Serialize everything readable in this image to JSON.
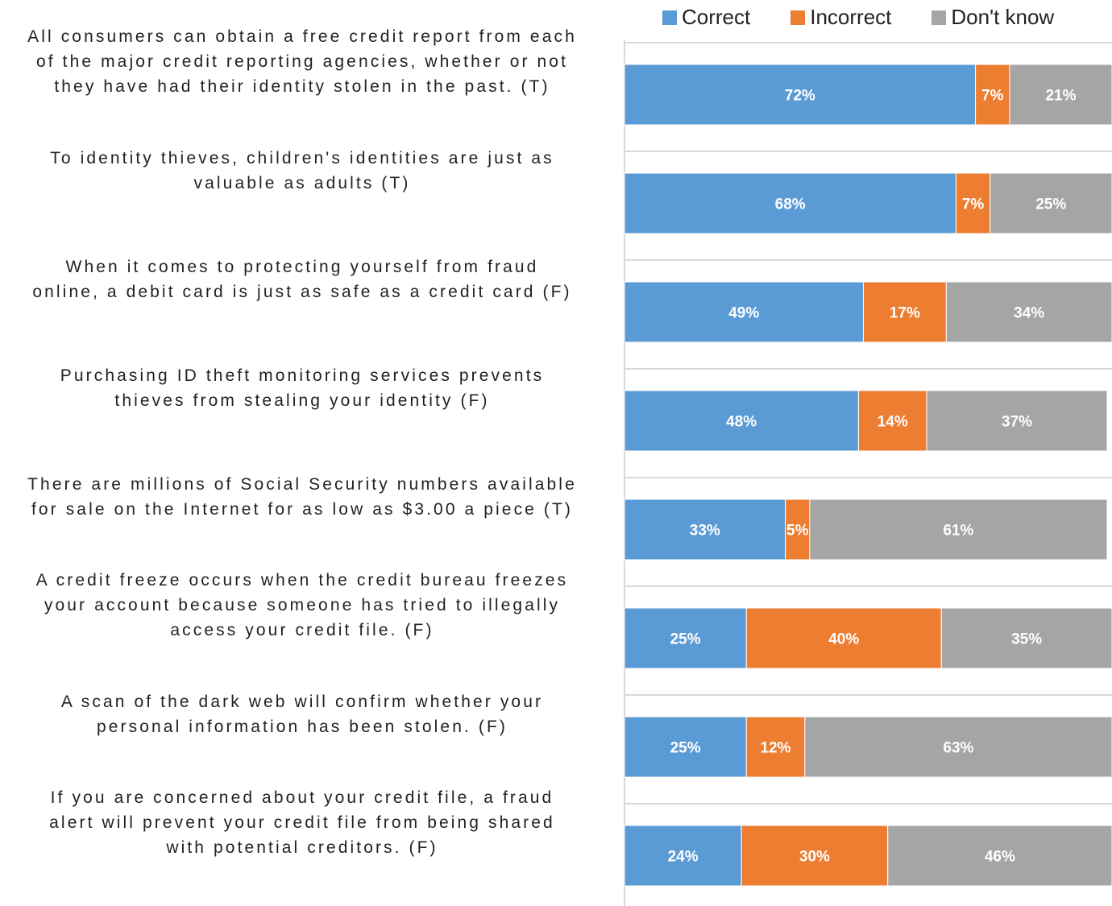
{
  "chart_data": {
    "type": "bar",
    "orientation": "horizontal",
    "stacked": true,
    "percent_stacked": true,
    "title": "",
    "xlabel": "",
    "ylabel": "",
    "legend_position": "top-right",
    "grid": true,
    "categories": [
      "All consumers can obtain a free credit report from each of the major credit reporting agencies, whether or not they have had their identity stolen in the past. (T)",
      "To identity thieves, children's identities are just as valuable as adults (T)",
      "When it comes to protecting yourself from fraud online, a debit card is just as safe as a credit card (F)",
      "Purchasing ID theft monitoring services prevents thieves from stealing your identity (F)",
      "There are millions of Social Security numbers available for sale on the Internet for as low as $3.00 a piece (T)",
      "A credit freeze occurs when the credit bureau freezes your account because someone has tried to illegally access your credit file. (F)",
      "A scan of the dark web will confirm whether your personal information has been stolen. (F)",
      "If you are concerned about your credit file, a fraud alert will prevent your credit file from being shared with potential creditors. (F)"
    ],
    "category_lines": [
      [
        "All consumers can obtain a free credit report from each",
        "of the major credit reporting agencies, whether or not",
        "they have had their identity stolen in the past. (T)"
      ],
      [
        "To identity thieves, children's identities are just as",
        "valuable as adults (T)"
      ],
      [
        "When it comes to protecting yourself from fraud",
        "online, a debit card is just as safe as a credit card (F)"
      ],
      [
        "Purchasing ID theft monitoring services prevents",
        "thieves from stealing your identity (F)"
      ],
      [
        "There are millions of Social Security numbers available",
        "for sale on the Internet for as low as $3.00 a piece (T)"
      ],
      [
        "A credit freeze occurs when the credit bureau freezes",
        "your account because someone has tried to illegally",
        "access your credit file. (F)"
      ],
      [
        "A scan of the dark web will confirm whether your",
        "personal information has been stolen. (F)"
      ],
      [
        "If you are concerned about your credit file, a fraud",
        "alert will prevent your credit file from being shared",
        "with potential creditors. (F)"
      ]
    ],
    "series": [
      {
        "name": "Correct",
        "color": "#5b9bd5",
        "values": [
          72,
          68,
          49,
          48,
          33,
          25,
          25,
          24
        ],
        "labels": [
          "72%",
          "68%",
          "49%",
          "48%",
          "33%",
          "25%",
          "25%",
          "24%"
        ]
      },
      {
        "name": "Incorrect",
        "color": "#ed7d31",
        "values": [
          7,
          7,
          17,
          14,
          5,
          40,
          12,
          30
        ],
        "labels": [
          "7%",
          "7%",
          "17%",
          "14%",
          "5%",
          "40%",
          "12%",
          "30%"
        ]
      },
      {
        "name": "Don't know",
        "color": "#a5a5a5",
        "values": [
          21,
          25,
          34,
          37,
          61,
          35,
          63,
          46
        ],
        "labels": [
          "21%",
          "25%",
          "34%",
          "37%",
          "61%",
          "35%",
          "63%",
          "46%"
        ]
      }
    ]
  }
}
